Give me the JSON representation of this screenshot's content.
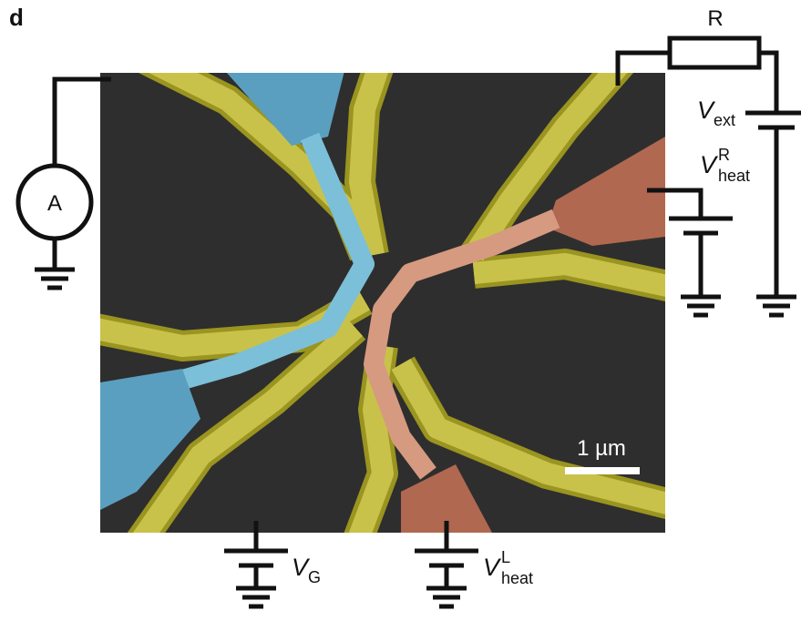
{
  "panel_label": "d",
  "resistor_label": "R",
  "ammeter_label": "A",
  "scale_bar_label": "1 µm",
  "v_ext": {
    "symbol": "V",
    "sub": "ext"
  },
  "v_heat_r": {
    "symbol": "V",
    "sup": "R",
    "sub": "heat"
  },
  "v_gate": {
    "symbol": "V",
    "sub": "G"
  },
  "v_heat_l": {
    "symbol": "V",
    "sup": "L",
    "sub": "heat"
  }
}
